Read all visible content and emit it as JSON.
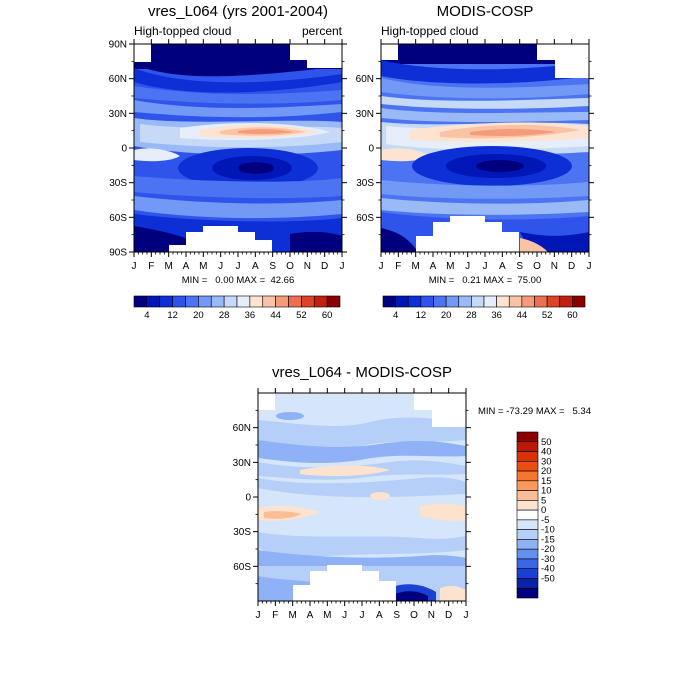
{
  "chart_data": [
    {
      "type": "heatmap",
      "title": "vres_L064 (yrs 2001-2004)",
      "left_label": "High-topped cloud",
      "right_label": "percent",
      "minmax_text": "MIN =   0.00 MAX =  42.66",
      "x_ticks": [
        "J",
        "F",
        "M",
        "A",
        "M",
        "J",
        "J",
        "A",
        "S",
        "O",
        "N",
        "D",
        "J"
      ],
      "y_ticks": [
        "90N",
        "60N",
        "30N",
        "0",
        "30S",
        "60S",
        "90S"
      ],
      "ylim": [
        -90,
        90
      ],
      "colorbar_labels": [
        "4",
        "12",
        "20",
        "28",
        "36",
        "44",
        "52",
        "60"
      ],
      "colorbar_colors": [
        "#00007f",
        "#0016b6",
        "#0d2fd6",
        "#2f54ec",
        "#4c74f2",
        "#7199f5",
        "#9ab9f7",
        "#c6daf8",
        "#e6eefc",
        "#fde4d0",
        "#fbc3a5",
        "#f59b7a",
        "#ee6f4f",
        "#df4325",
        "#c1200e",
        "#8b0000"
      ]
    },
    {
      "type": "heatmap",
      "title": "MODIS-COSP",
      "left_label": "High-topped cloud",
      "minmax_text": "MIN =   0.21 MAX =  75.00",
      "x_ticks": [
        "J",
        "F",
        "M",
        "A",
        "M",
        "J",
        "J",
        "A",
        "S",
        "O",
        "N",
        "D",
        "J"
      ],
      "y_ticks": [
        "60N",
        "30N",
        "0",
        "30S",
        "60S"
      ],
      "ylim": [
        -90,
        90
      ],
      "colorbar_labels": [
        "4",
        "12",
        "20",
        "28",
        "36",
        "44",
        "52",
        "60"
      ]
    },
    {
      "type": "heatmap",
      "title": "vres_L064 - MODIS-COSP",
      "minmax_text": "MIN = -73.29 MAX =   5.34",
      "x_ticks": [
        "J",
        "F",
        "M",
        "A",
        "M",
        "J",
        "J",
        "A",
        "S",
        "O",
        "N",
        "D",
        "J"
      ],
      "y_ticks": [
        "60N",
        "30N",
        "0",
        "30S",
        "60S"
      ],
      "ylim": [
        -90,
        90
      ],
      "colorbar_labels": [
        "50",
        "40",
        "30",
        "20",
        "15",
        "10",
        "5",
        "0",
        "-5",
        "-10",
        "-15",
        "-20",
        "-30",
        "-40",
        "-50"
      ],
      "colorbar_colors": [
        "#8b0000",
        "#bd1a03",
        "#d83308",
        "#ed4e10",
        "#f7752c",
        "#f99a5c",
        "#fbbd93",
        "#fde3cd",
        "#ffffff",
        "#d5e6fb",
        "#b5cff8",
        "#8eb2f5",
        "#6690f0",
        "#3c66e8",
        "#1b40d5",
        "#0b23a8",
        "#00007f"
      ]
    }
  ]
}
